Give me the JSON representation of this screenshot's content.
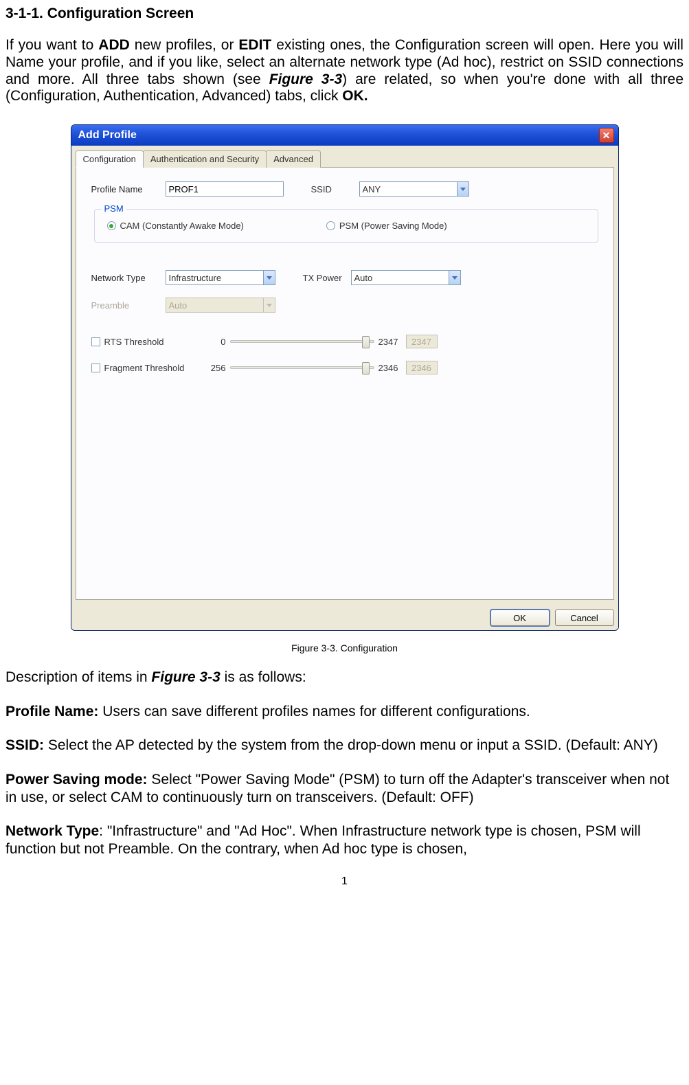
{
  "heading": "3-1-1. Configuration Screen",
  "intro": {
    "t1": "If you want to ",
    "add": "ADD",
    "t2": " new profiles, or ",
    "edit": "EDIT",
    "t3": " existing ones, the Configuration screen will open. Here you will Name your profile, and if you like, select an alternate network type (Ad hoc), restrict on SSID connections and more. All three tabs shown (see ",
    "fig": "Figure 3-3",
    "t4": ") are related, so when you're done with all three (Configuration, Authentication, Advanced) tabs, click ",
    "ok": "OK."
  },
  "window": {
    "title": "Add Profile",
    "tabs": [
      "Configuration",
      "Authentication and Security",
      "Advanced"
    ],
    "labels": {
      "profileName": "Profile Name",
      "ssid": "SSID",
      "psm": "PSM",
      "networkType": "Network Type",
      "txPower": "TX Power",
      "preamble": "Preamble",
      "rts": "RTS Threshold",
      "fragment": "Fragment Threshold"
    },
    "values": {
      "profileName": "PROF1",
      "ssid": "ANY",
      "networkType": "Infrastructure",
      "txPower": "Auto",
      "preamble": "Auto",
      "rtsMin": "0",
      "rtsMax": "2347",
      "rtsVal": "2347",
      "rtsThumbPct": 96,
      "fragMin": "256",
      "fragMax": "2346",
      "fragVal": "2346",
      "fragThumbPct": 96
    },
    "radios": {
      "cam": "CAM (Constantly Awake Mode)",
      "psm": "PSM (Power Saving Mode)"
    },
    "buttons": {
      "ok": "OK",
      "cancel": "Cancel"
    }
  },
  "figcaption": "Figure 3-3.    Configuration",
  "desc": {
    "intro_a": "Description of items in ",
    "intro_fig": "Figure 3-3",
    "intro_b": " is as follows:",
    "profile_label": "Profile Name:",
    "profile_text": " Users can save different profiles names for different configurations.",
    "ssid_label": "SSID:",
    "ssid_text": " Select the AP detected by the system from the drop-down menu or input a SSID. (Default: ANY)",
    "psm_label": "Power Saving mode:",
    "psm_text": " Select \"Power Saving Mode\" (PSM) to turn off the Adapter's transceiver when not in use, or select CAM to continuously turn on transceivers. (Default: OFF)",
    "net_label": "Network Type",
    "net_text": ": \"Infrastructure\" and \"Ad Hoc\". When Infrastructure network type is chosen, PSM will function but not Preamble. On the contrary, when Ad hoc type is chosen,"
  },
  "pagenum": "1",
  "colors": {
    "titlebar_start": "#3a6ef0",
    "titlebar_end": "#0b3cc0",
    "panel_bg": "#ece9d8",
    "border": "#aca899"
  }
}
